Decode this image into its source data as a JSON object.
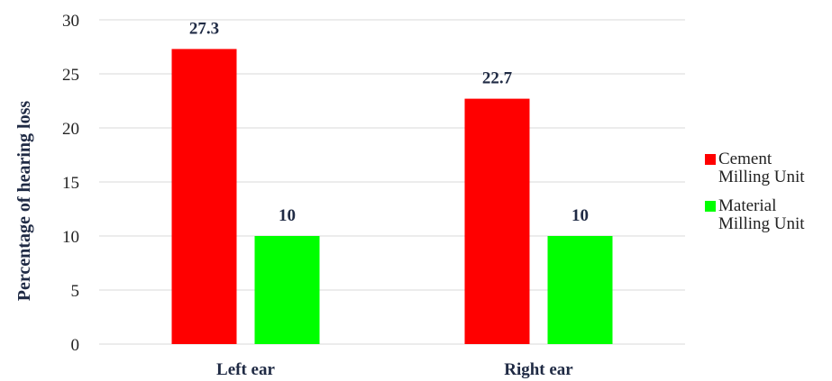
{
  "chart_data": {
    "type": "bar",
    "categories": [
      "Left ear",
      "Right ear"
    ],
    "series": [
      {
        "name": "Cement Milling Unit",
        "values": [
          27.3,
          22.7
        ],
        "color": "#ff0000",
        "legend_lines": [
          "Cement",
          "Milling Unit"
        ]
      },
      {
        "name": "Material Milling Unit",
        "values": [
          10,
          10
        ],
        "color": "#00ff00",
        "legend_lines": [
          "Material",
          "Milling Unit"
        ]
      }
    ],
    "data_labels": [
      [
        "27.3",
        "22.7"
      ],
      [
        "10",
        "10"
      ]
    ],
    "ylabel": "Percentage of hearing loss",
    "ylim": [
      0,
      30
    ],
    "yticks": [
      0,
      5,
      10,
      15,
      20,
      25,
      30
    ],
    "grid": true,
    "legend": "right"
  }
}
